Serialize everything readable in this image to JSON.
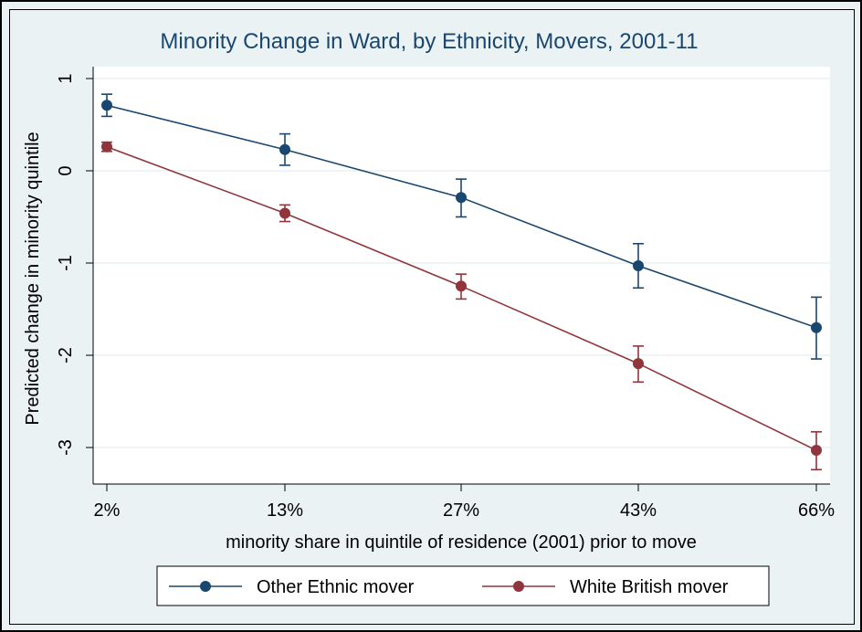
{
  "chart_data": {
    "type": "line",
    "title": "Minority Change in Ward, by Ethnicity, Movers, 2001-11",
    "xlabel": "minority share in quintile of residence (2001) prior to move",
    "ylabel": "Predicted change in minority quintile",
    "categories": [
      "2%",
      "13%",
      "27%",
      "43%",
      "66%"
    ],
    "ylim": [
      -3.4,
      1.0
    ],
    "yticks": [
      1,
      0,
      -1,
      -2,
      -3
    ],
    "ytick_labels": [
      "1",
      "0",
      "-1",
      "-2",
      "-3"
    ],
    "grid": true,
    "legend_position": "bottom",
    "series": [
      {
        "name": "Other Ethnic mover",
        "color": "#1a476f",
        "values": [
          0.71,
          0.23,
          -0.29,
          -1.03,
          -1.7
        ],
        "lower": [
          0.59,
          0.06,
          -0.5,
          -1.27,
          -2.04
        ],
        "upper": [
          0.83,
          0.4,
          -0.09,
          -0.79,
          -1.37
        ]
      },
      {
        "name": "White British mover",
        "color": "#90353b",
        "values": [
          0.26,
          -0.46,
          -1.25,
          -2.09,
          -3.03
        ],
        "lower": [
          0.21,
          -0.55,
          -1.39,
          -2.29,
          -3.24
        ],
        "upper": [
          0.31,
          -0.37,
          -1.12,
          -1.9,
          -2.83
        ]
      }
    ]
  },
  "colors": {
    "background": "#eaf2f3",
    "plot_background": "#ffffff",
    "grid": "#eaf2f3",
    "title": "#1a476f"
  }
}
